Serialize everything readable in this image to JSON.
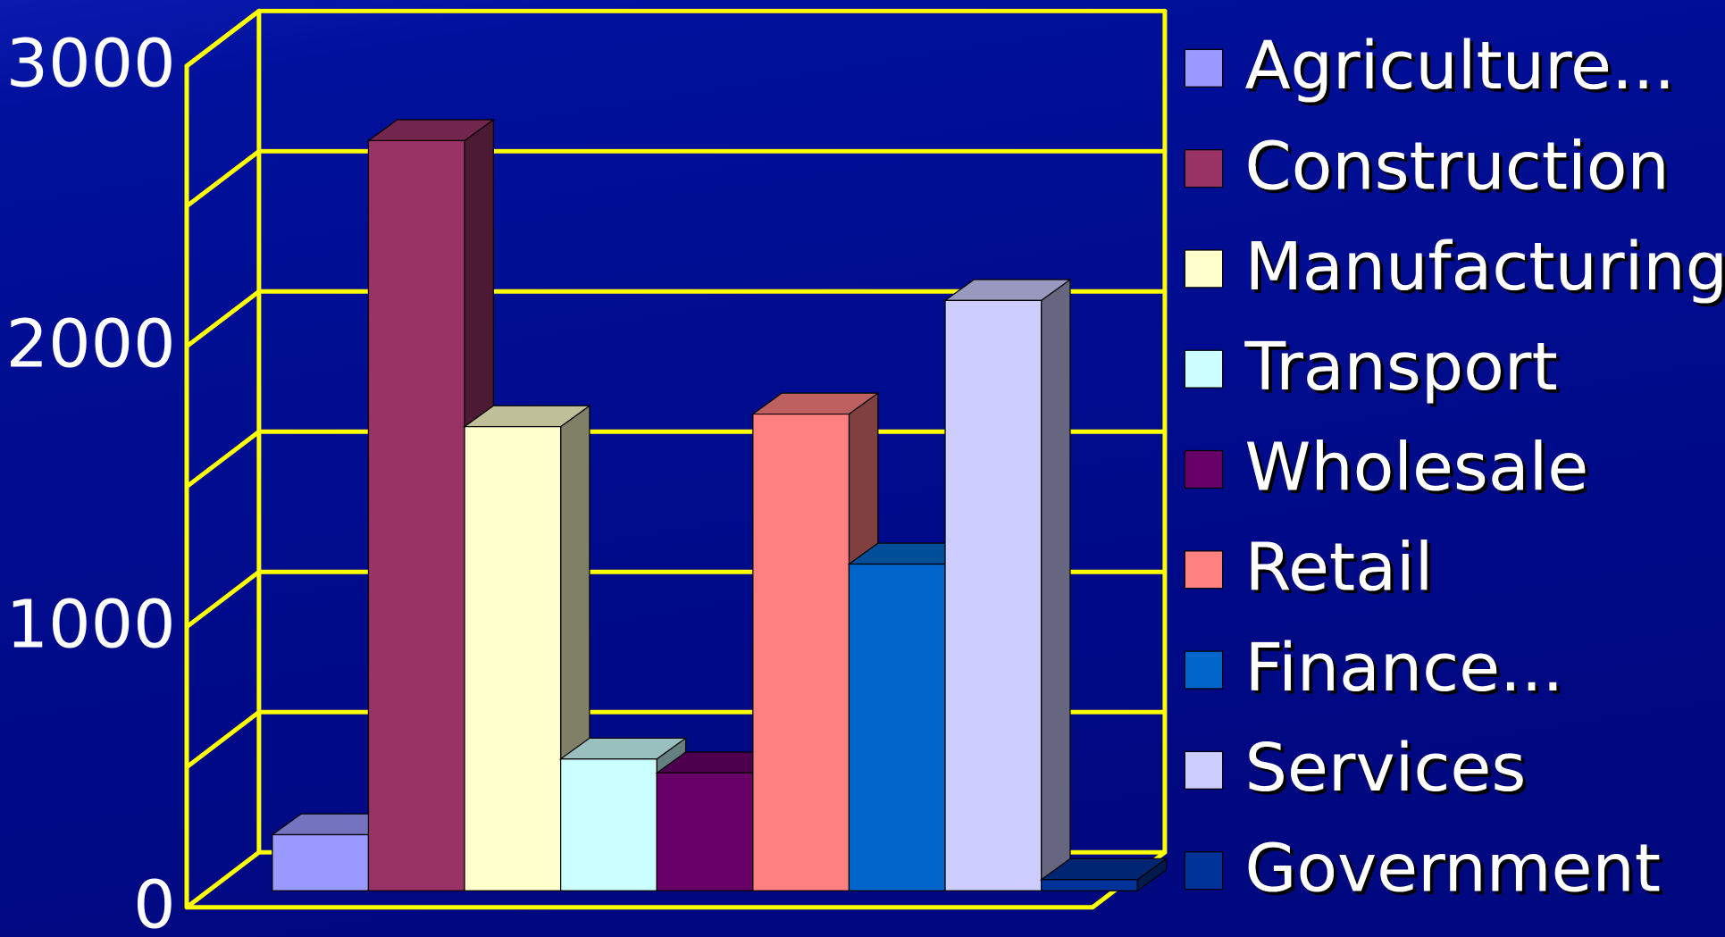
{
  "chart_data": {
    "type": "bar3d",
    "categories": [
      "Agriculture...",
      "Construction",
      "Manufacturing",
      "Transport",
      "Wholesale",
      "Retail",
      "Finance...",
      "Services",
      "Government"
    ],
    "values": [
      200,
      2675,
      1655,
      470,
      420,
      1700,
      1165,
      2105,
      40
    ],
    "colors": [
      "#9999ff",
      "#993366",
      "#ffffcc",
      "#ccffff",
      "#660066",
      "#ff8080",
      "#0066cc",
      "#ccccff",
      "#003399"
    ],
    "ylim": [
      0,
      3000
    ],
    "yticks": [
      0,
      1000,
      2000,
      3000
    ],
    "minor_yticks": [
      500,
      1500,
      2500
    ],
    "grid": true,
    "grid_color": "#ffff00",
    "legend": "right"
  }
}
